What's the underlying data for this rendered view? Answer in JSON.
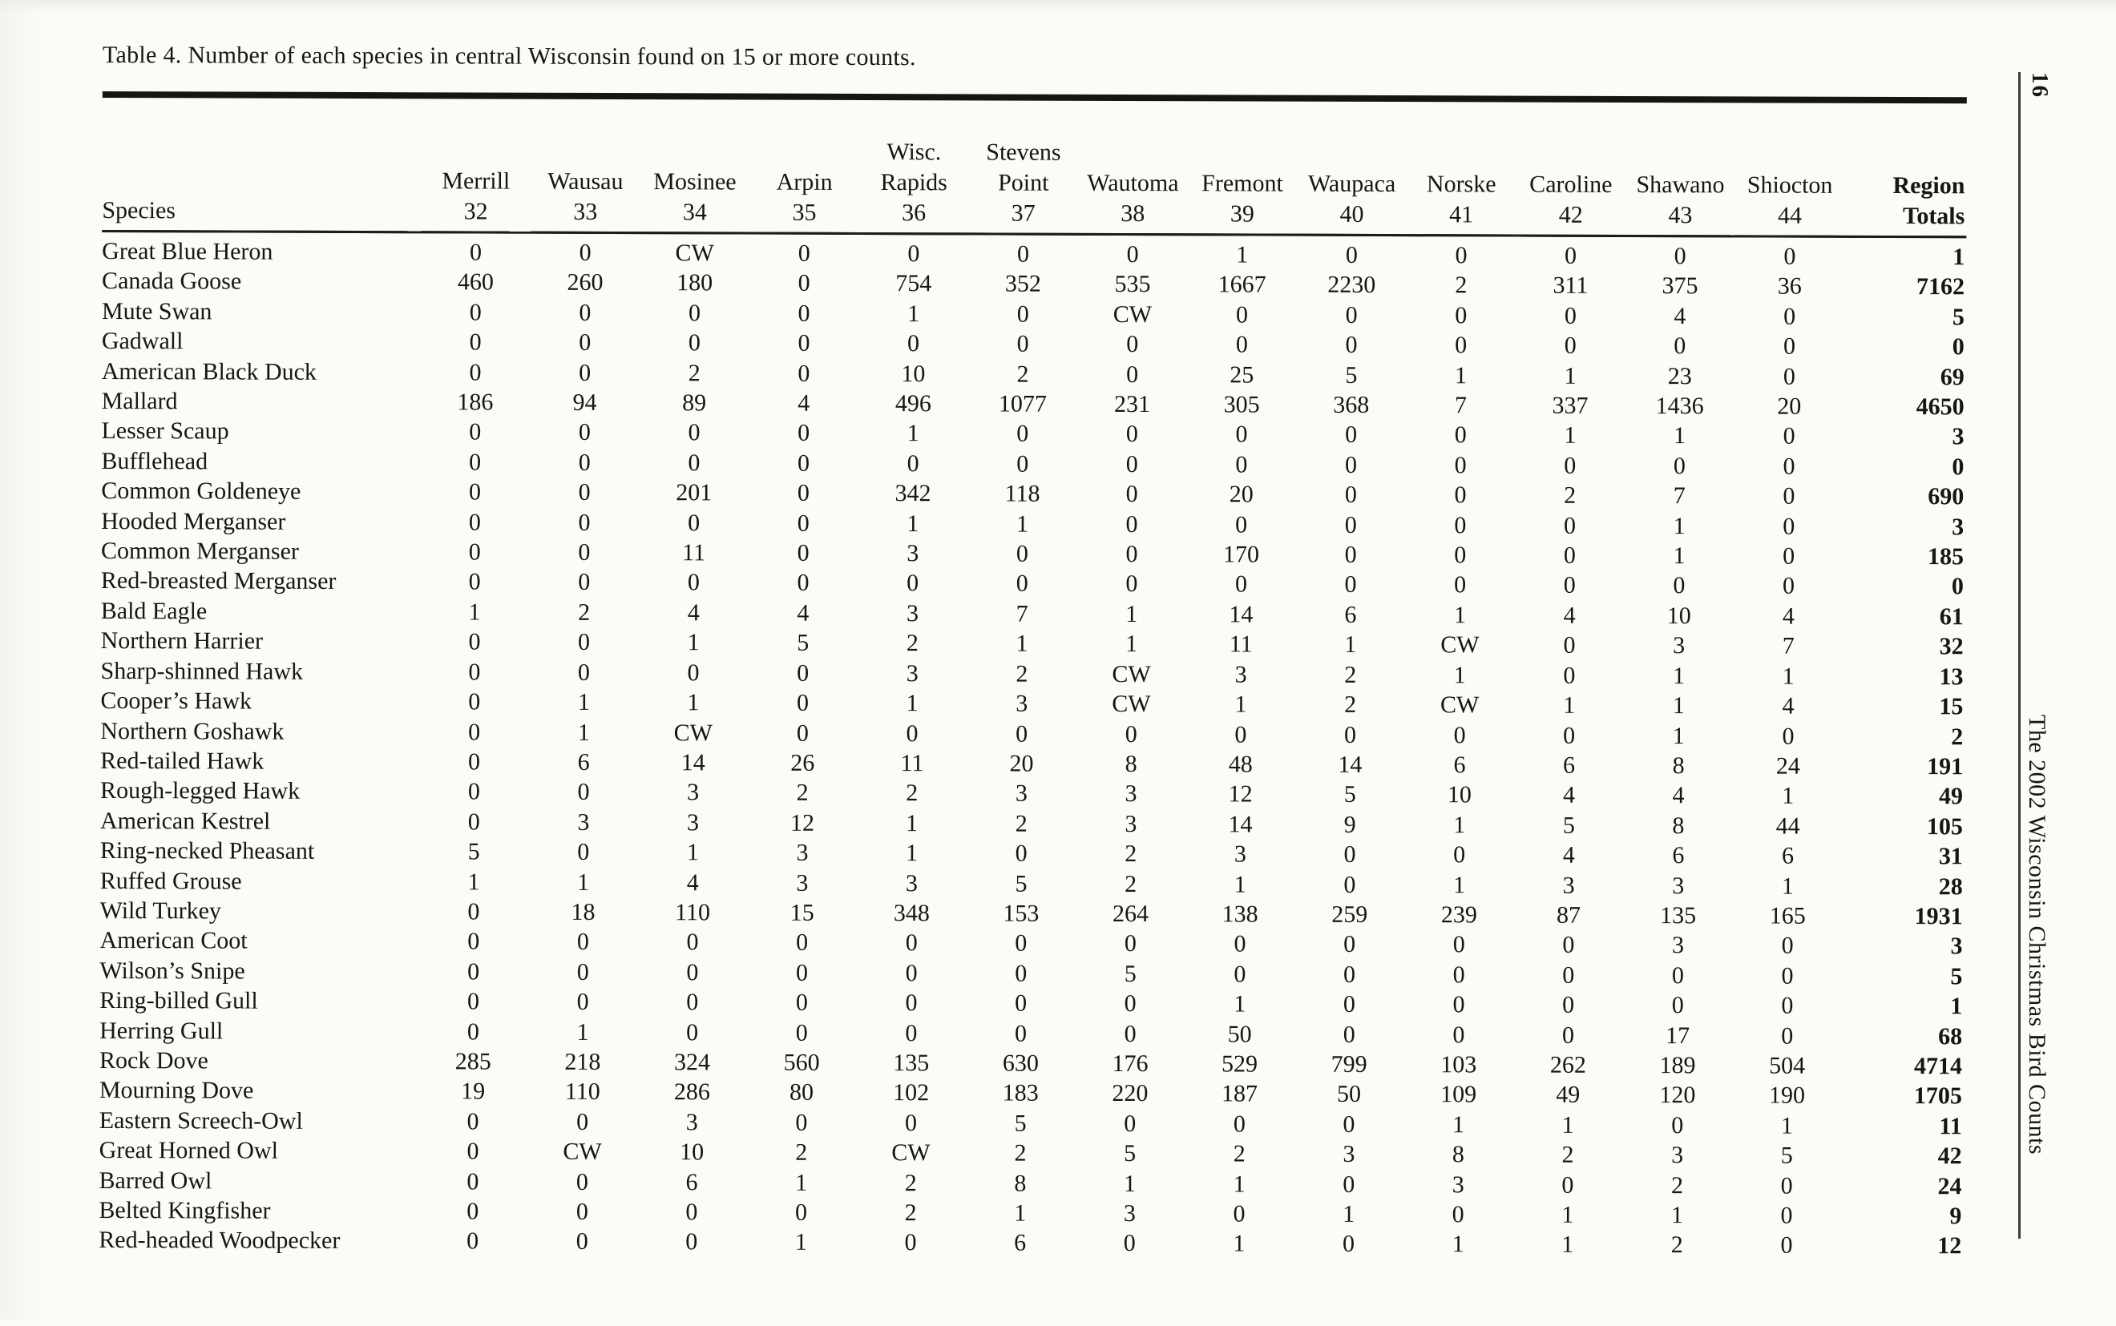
{
  "page": {
    "title": "Table 4. Number of each species in central Wisconsin found on 15 or more counts.",
    "page_number": "16",
    "journal_title": "The 2002 Wisconsin Christmas Bird Counts",
    "ink_color": "#161616",
    "paper_color": "#fbfbf8"
  },
  "table": {
    "species_header": "Species",
    "totals_header_line1": "Region",
    "totals_header_line2": "Totals",
    "columns": [
      {
        "line1": "",
        "line2": "Merrill",
        "number": "32"
      },
      {
        "line1": "",
        "line2": "Wausau",
        "number": "33"
      },
      {
        "line1": "",
        "line2": "Mosinee",
        "number": "34"
      },
      {
        "line1": "",
        "line2": "Arpin",
        "number": "35"
      },
      {
        "line1": "Wisc.",
        "line2": "Rapids",
        "number": "36"
      },
      {
        "line1": "Stevens",
        "line2": "Point",
        "number": "37"
      },
      {
        "line1": "",
        "line2": "Wautoma",
        "number": "38"
      },
      {
        "line1": "",
        "line2": "Fremont",
        "number": "39"
      },
      {
        "line1": "",
        "line2": "Waupaca",
        "number": "40"
      },
      {
        "line1": "",
        "line2": "Norske",
        "number": "41"
      },
      {
        "line1": "",
        "line2": "Caroline",
        "number": "42"
      },
      {
        "line1": "",
        "line2": "Shawano",
        "number": "43"
      },
      {
        "line1": "",
        "line2": "Shiocton",
        "number": "44"
      }
    ],
    "rows": [
      {
        "species": "Great Blue Heron",
        "values": [
          "0",
          "0",
          "CW",
          "0",
          "0",
          "0",
          "0",
          "1",
          "0",
          "0",
          "0",
          "0",
          "0"
        ],
        "total": "1"
      },
      {
        "species": "Canada Goose",
        "values": [
          "460",
          "260",
          "180",
          "0",
          "754",
          "352",
          "535",
          "1667",
          "2230",
          "2",
          "311",
          "375",
          "36"
        ],
        "total": "7162"
      },
      {
        "species": "Mute Swan",
        "values": [
          "0",
          "0",
          "0",
          "0",
          "1",
          "0",
          "CW",
          "0",
          "0",
          "0",
          "0",
          "4",
          "0"
        ],
        "total": "5"
      },
      {
        "species": "Gadwall",
        "values": [
          "0",
          "0",
          "0",
          "0",
          "0",
          "0",
          "0",
          "0",
          "0",
          "0",
          "0",
          "0",
          "0"
        ],
        "total": "0"
      },
      {
        "species": "American Black Duck",
        "values": [
          "0",
          "0",
          "2",
          "0",
          "10",
          "2",
          "0",
          "25",
          "5",
          "1",
          "1",
          "23",
          "0"
        ],
        "total": "69"
      },
      {
        "species": "Mallard",
        "values": [
          "186",
          "94",
          "89",
          "4",
          "496",
          "1077",
          "231",
          "305",
          "368",
          "7",
          "337",
          "1436",
          "20"
        ],
        "total": "4650"
      },
      {
        "species": "Lesser Scaup",
        "values": [
          "0",
          "0",
          "0",
          "0",
          "1",
          "0",
          "0",
          "0",
          "0",
          "0",
          "1",
          "1",
          "0"
        ],
        "total": "3"
      },
      {
        "species": "Bufflehead",
        "values": [
          "0",
          "0",
          "0",
          "0",
          "0",
          "0",
          "0",
          "0",
          "0",
          "0",
          "0",
          "0",
          "0"
        ],
        "total": "0"
      },
      {
        "species": "Common Goldeneye",
        "values": [
          "0",
          "0",
          "201",
          "0",
          "342",
          "118",
          "0",
          "20",
          "0",
          "0",
          "2",
          "7",
          "0"
        ],
        "total": "690"
      },
      {
        "species": "Hooded Merganser",
        "values": [
          "0",
          "0",
          "0",
          "0",
          "1",
          "1",
          "0",
          "0",
          "0",
          "0",
          "0",
          "1",
          "0"
        ],
        "total": "3"
      },
      {
        "species": "Common Merganser",
        "values": [
          "0",
          "0",
          "11",
          "0",
          "3",
          "0",
          "0",
          "170",
          "0",
          "0",
          "0",
          "1",
          "0"
        ],
        "total": "185"
      },
      {
        "species": "Red-breasted Merganser",
        "values": [
          "0",
          "0",
          "0",
          "0",
          "0",
          "0",
          "0",
          "0",
          "0",
          "0",
          "0",
          "0",
          "0"
        ],
        "total": "0"
      },
      {
        "species": "Bald Eagle",
        "values": [
          "1",
          "2",
          "4",
          "4",
          "3",
          "7",
          "1",
          "14",
          "6",
          "1",
          "4",
          "10",
          "4"
        ],
        "total": "61"
      },
      {
        "species": "Northern Harrier",
        "values": [
          "0",
          "0",
          "1",
          "5",
          "2",
          "1",
          "1",
          "11",
          "1",
          "CW",
          "0",
          "3",
          "7"
        ],
        "total": "32"
      },
      {
        "species": "Sharp-shinned Hawk",
        "values": [
          "0",
          "0",
          "0",
          "0",
          "3",
          "2",
          "CW",
          "3",
          "2",
          "1",
          "0",
          "1",
          "1"
        ],
        "total": "13"
      },
      {
        "species": "Cooper’s Hawk",
        "values": [
          "0",
          "1",
          "1",
          "0",
          "1",
          "3",
          "CW",
          "1",
          "2",
          "CW",
          "1",
          "1",
          "4"
        ],
        "total": "15"
      },
      {
        "species": "Northern Goshawk",
        "values": [
          "0",
          "1",
          "CW",
          "0",
          "0",
          "0",
          "0",
          "0",
          "0",
          "0",
          "0",
          "1",
          "0"
        ],
        "total": "2"
      },
      {
        "species": "Red-tailed Hawk",
        "values": [
          "0",
          "6",
          "14",
          "26",
          "11",
          "20",
          "8",
          "48",
          "14",
          "6",
          "6",
          "8",
          "24"
        ],
        "total": "191"
      },
      {
        "species": "Rough-legged Hawk",
        "values": [
          "0",
          "0",
          "3",
          "2",
          "2",
          "3",
          "3",
          "12",
          "5",
          "10",
          "4",
          "4",
          "1"
        ],
        "total": "49"
      },
      {
        "species": "American Kestrel",
        "values": [
          "0",
          "3",
          "3",
          "12",
          "1",
          "2",
          "3",
          "14",
          "9",
          "1",
          "5",
          "8",
          "44"
        ],
        "total": "105"
      },
      {
        "species": "Ring-necked Pheasant",
        "values": [
          "5",
          "0",
          "1",
          "3",
          "1",
          "0",
          "2",
          "3",
          "0",
          "0",
          "4",
          "6",
          "6"
        ],
        "total": "31"
      },
      {
        "species": "Ruffed Grouse",
        "values": [
          "1",
          "1",
          "4",
          "3",
          "3",
          "5",
          "2",
          "1",
          "0",
          "1",
          "3",
          "3",
          "1"
        ],
        "total": "28"
      },
      {
        "species": "Wild Turkey",
        "values": [
          "0",
          "18",
          "110",
          "15",
          "348",
          "153",
          "264",
          "138",
          "259",
          "239",
          "87",
          "135",
          "165"
        ],
        "total": "1931"
      },
      {
        "species": "American Coot",
        "values": [
          "0",
          "0",
          "0",
          "0",
          "0",
          "0",
          "0",
          "0",
          "0",
          "0",
          "0",
          "3",
          "0"
        ],
        "total": "3"
      },
      {
        "species": "Wilson’s Snipe",
        "values": [
          "0",
          "0",
          "0",
          "0",
          "0",
          "0",
          "5",
          "0",
          "0",
          "0",
          "0",
          "0",
          "0"
        ],
        "total": "5"
      },
      {
        "species": "Ring-billed Gull",
        "values": [
          "0",
          "0",
          "0",
          "0",
          "0",
          "0",
          "0",
          "1",
          "0",
          "0",
          "0",
          "0",
          "0"
        ],
        "total": "1"
      },
      {
        "species": "Herring Gull",
        "values": [
          "0",
          "1",
          "0",
          "0",
          "0",
          "0",
          "0",
          "50",
          "0",
          "0",
          "0",
          "17",
          "0"
        ],
        "total": "68"
      },
      {
        "species": "Rock Dove",
        "values": [
          "285",
          "218",
          "324",
          "560",
          "135",
          "630",
          "176",
          "529",
          "799",
          "103",
          "262",
          "189",
          "504"
        ],
        "total": "4714"
      },
      {
        "species": "Mourning Dove",
        "values": [
          "19",
          "110",
          "286",
          "80",
          "102",
          "183",
          "220",
          "187",
          "50",
          "109",
          "49",
          "120",
          "190"
        ],
        "total": "1705"
      },
      {
        "species": "Eastern Screech-Owl",
        "values": [
          "0",
          "0",
          "3",
          "0",
          "0",
          "5",
          "0",
          "0",
          "0",
          "1",
          "1",
          "0",
          "1"
        ],
        "total": "11"
      },
      {
        "species": "Great Horned Owl",
        "values": [
          "0",
          "CW",
          "10",
          "2",
          "CW",
          "2",
          "5",
          "2",
          "3",
          "8",
          "2",
          "3",
          "5"
        ],
        "total": "42"
      },
      {
        "species": "Barred Owl",
        "values": [
          "0",
          "0",
          "6",
          "1",
          "2",
          "8",
          "1",
          "1",
          "0",
          "3",
          "0",
          "2",
          "0"
        ],
        "total": "24"
      },
      {
        "species": "Belted Kingfisher",
        "values": [
          "0",
          "0",
          "0",
          "0",
          "2",
          "1",
          "3",
          "0",
          "1",
          "0",
          "1",
          "1",
          "0"
        ],
        "total": "9"
      },
      {
        "species": "Red-headed Woodpecker",
        "values": [
          "0",
          "0",
          "0",
          "1",
          "0",
          "6",
          "0",
          "1",
          "0",
          "1",
          "1",
          "2",
          "0"
        ],
        "total": "12"
      }
    ]
  }
}
